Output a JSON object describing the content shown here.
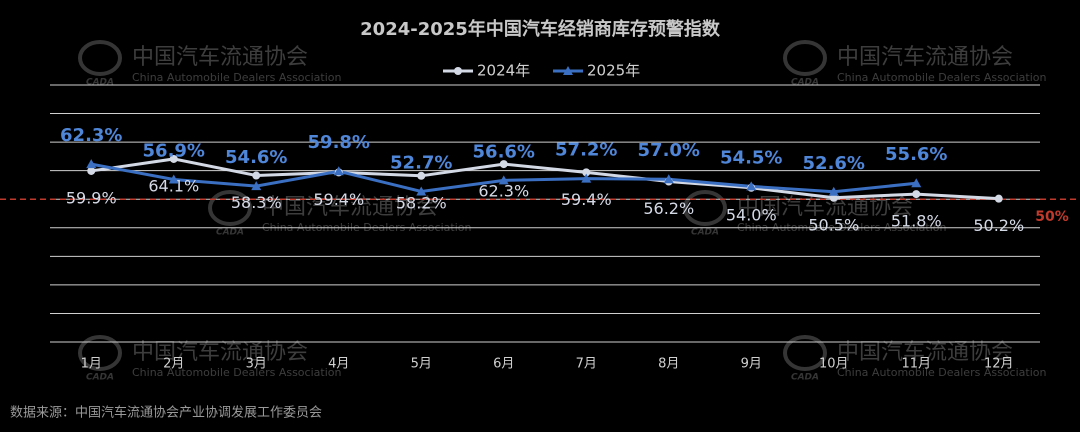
{
  "chart_data": {
    "type": "line",
    "title": "2024-2025年中国汽车经销商库存预警指数",
    "categories": [
      "1月",
      "2月",
      "3月",
      "4月",
      "5月",
      "6月",
      "7月",
      "8月",
      "9月",
      "10月",
      "11月",
      "12月"
    ],
    "series": [
      {
        "name": "2024年",
        "color": "#d4d9e6",
        "values": [
          59.9,
          64.1,
          58.3,
          59.4,
          58.2,
          62.3,
          59.4,
          56.2,
          54.0,
          50.5,
          51.8,
          50.2
        ],
        "value_labels": [
          "59.9%",
          "64.1%",
          "58.3%",
          "59.4%",
          "58.2%",
          "62.3%",
          "59.4%",
          "56.2%",
          "54.0%",
          "50.5%",
          "51.8%",
          "50.2%"
        ]
      },
      {
        "name": "2025年",
        "color": "#3a6fc2",
        "values": [
          62.3,
          56.9,
          54.6,
          59.8,
          52.7,
          56.6,
          57.2,
          57.0,
          54.5,
          52.6,
          55.6,
          null
        ],
        "value_labels": [
          "62.3%",
          "56.9%",
          "54.6%",
          "59.8%",
          "52.7%",
          "56.6%",
          "57.2%",
          "57.0%",
          "54.5%",
          "52.6%",
          "55.6%",
          null
        ]
      }
    ],
    "ylim": [
      0,
      90
    ],
    "yticks": [
      0,
      10,
      20,
      30,
      40,
      50,
      60,
      70,
      80,
      90
    ],
    "grid": true,
    "threshold": {
      "value": 50,
      "label": "50%",
      "color": "#c0392b"
    },
    "legend": "top",
    "watermark": {
      "name": "中国汽车流通协会",
      "english": "China Automobile Dealers Association",
      "logo": "CADA"
    },
    "source": "数据来源：中国汽车流通协会产业协调发展工作委员会"
  }
}
